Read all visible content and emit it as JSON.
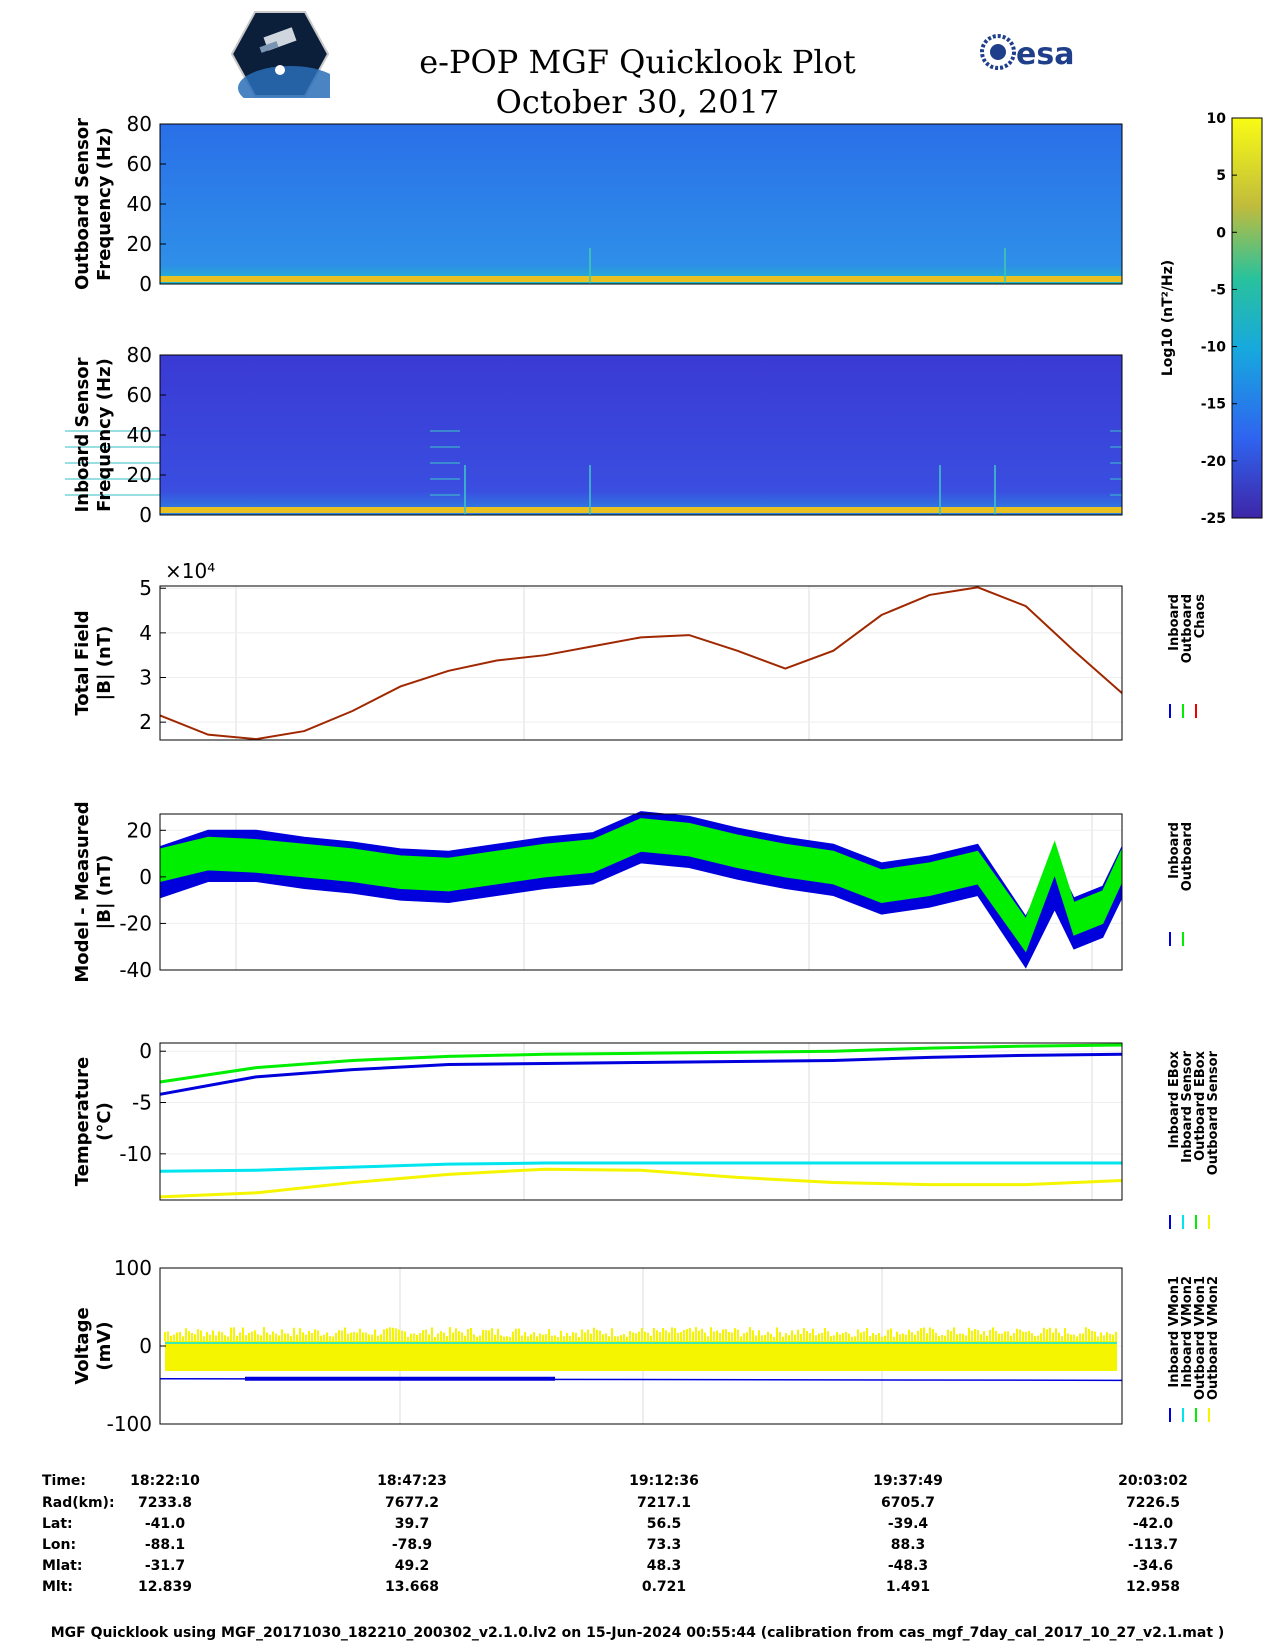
{
  "title": "e-POP MGF Quicklook Plot",
  "date": "October 30, 2017",
  "logos": {
    "left": "CASSIOPE mission logo",
    "right": "esa"
  },
  "colors": {
    "inboard": "#0000dd",
    "outboard": "#00ee00",
    "chaos": "#ee0000",
    "cyan": "#00e5ee",
    "yellow": "#f5f500",
    "total": "#a02800"
  },
  "colorbar": {
    "ticks": [
      "10",
      "5",
      "0",
      "-5",
      "-10",
      "-15",
      "-20",
      "-25"
    ],
    "label": "Log10 (nT²/Hz)",
    "range": [
      -25,
      10
    ]
  },
  "chart_data": [
    {
      "type": "heatmap",
      "ylabel": [
        "Outboard Sensor",
        "Frequency (Hz)"
      ],
      "yticks": [
        "80",
        "60",
        "40",
        "20",
        "0"
      ],
      "ylim": [
        0,
        80
      ]
    },
    {
      "type": "heatmap",
      "ylabel": [
        "Inboard Sensor",
        "Frequency (Hz)"
      ],
      "yticks": [
        "80",
        "60",
        "40",
        "20",
        "0"
      ],
      "ylim": [
        0,
        80
      ]
    },
    {
      "type": "line",
      "ylabel": [
        "Total Field",
        "|B| (nT)"
      ],
      "yticks": [
        "5",
        "4",
        "3",
        "2"
      ],
      "exponent": "×10⁴",
      "ylim": [
        1.6,
        5.05
      ],
      "legend": [
        "Inboard",
        "Outboard",
        "Chaos"
      ],
      "x_minutes": [
        0,
        5,
        10,
        15,
        20,
        25,
        30,
        35,
        40,
        45,
        50,
        55,
        60,
        65,
        70,
        75,
        80,
        85,
        90,
        95,
        100
      ],
      "series": [
        {
          "values": [
            2.15,
            1.72,
            1.62,
            1.8,
            2.25,
            2.8,
            3.15,
            3.38,
            3.5,
            3.7,
            3.9,
            3.95,
            3.6,
            3.2,
            3.6,
            4.4,
            4.85,
            5.02,
            4.6,
            3.6,
            2.65
          ]
        }
      ]
    },
    {
      "type": "line",
      "ylabel": [
        "Model - Measured",
        "|B| (nT)"
      ],
      "yticks": [
        "20",
        "0",
        "-20",
        "-40"
      ],
      "ylim": [
        -40,
        27
      ],
      "legend": [
        "Inboard",
        "Outboard"
      ],
      "x_minutes": [
        0,
        5,
        10,
        15,
        20,
        25,
        30,
        35,
        40,
        45,
        50,
        55,
        60,
        65,
        70,
        75,
        80,
        85,
        90,
        93,
        95,
        98,
        100
      ],
      "series": [
        {
          "name": "Inboard",
          "values": [
            2,
            9,
            9,
            6,
            4,
            1,
            0,
            3,
            6,
            8,
            17,
            15,
            10,
            6,
            3,
            -5,
            -2,
            3,
            -28,
            -3,
            -20,
            -15,
            2
          ]
        },
        {
          "name": "Outboard",
          "values": [
            5,
            10,
            9,
            7,
            5,
            2,
            1,
            4,
            7,
            9,
            18,
            16,
            11,
            7,
            4,
            -4,
            -1,
            4,
            -25,
            8,
            -18,
            -13,
            5
          ]
        }
      ]
    },
    {
      "type": "line",
      "ylabel": [
        "Temperature",
        "(°C)"
      ],
      "yticks": [
        "0",
        "-5",
        "-10"
      ],
      "ylim": [
        -14.5,
        0.8
      ],
      "legend": [
        "Inboard EBox",
        "Inboard Sensor",
        "Outboard EBox",
        "Outboard Sensor"
      ],
      "x_minutes": [
        0,
        10,
        20,
        30,
        40,
        50,
        60,
        70,
        80,
        90,
        100
      ],
      "series": [
        {
          "name": "Inboard EBox",
          "values": [
            -4.2,
            -2.5,
            -1.8,
            -1.3,
            -1.2,
            -1.1,
            -1.0,
            -0.9,
            -0.6,
            -0.4,
            -0.3
          ]
        },
        {
          "name": "Inboard Sensor",
          "values": [
            -3.0,
            -1.6,
            -0.9,
            -0.5,
            -0.3,
            -0.2,
            -0.1,
            0.0,
            0.3,
            0.5,
            0.6
          ]
        },
        {
          "name": "Outboard EBox",
          "values": [
            -11.7,
            -11.6,
            -11.3,
            -11.0,
            -10.9,
            -10.9,
            -10.9,
            -10.9,
            -10.9,
            -10.9,
            -10.9
          ]
        },
        {
          "name": "Outboard Sensor",
          "values": [
            -14.2,
            -13.8,
            -12.8,
            -12.0,
            -11.5,
            -11.6,
            -12.3,
            -12.8,
            -13.0,
            -13.0,
            -12.6
          ]
        }
      ]
    },
    {
      "type": "line",
      "ylabel": [
        "Voltage",
        "(mV)"
      ],
      "yticks": [
        "100",
        "0",
        "-100"
      ],
      "ylim": [
        -100,
        100
      ],
      "legend": [
        "Inboard VMon1",
        "Inboard VMon2",
        "Outboard VMon1",
        "Outboard VMon2"
      ],
      "x_minutes": [
        0,
        100
      ],
      "series": [
        {
          "name": "Inboard VMon1",
          "values": [
            -42,
            -44
          ]
        },
        {
          "name": "Inboard VMon2",
          "values": [
            -5,
            -5
          ]
        },
        {
          "name": "Outboard VMon1",
          "values": [
            -5,
            -5
          ]
        },
        {
          "name": "Outboard VMon2",
          "values": [
            -5,
            -5
          ]
        }
      ]
    }
  ],
  "table": {
    "labels": [
      "Time:",
      "Rad(km):",
      "Lat:",
      "Lon:",
      "Mlat:",
      "Mlt:"
    ],
    "columns": [
      [
        "18:22:10",
        "7233.8",
        "-41.0",
        "-88.1",
        "-31.7",
        "12.839"
      ],
      [
        "18:47:23",
        "7677.2",
        "39.7",
        "-78.9",
        "49.2",
        "13.668"
      ],
      [
        "19:12:36",
        "7217.1",
        "56.5",
        "73.3",
        "48.3",
        "0.721"
      ],
      [
        "19:37:49",
        "6705.7",
        "-39.4",
        "88.3",
        "-48.3",
        "1.491"
      ],
      [
        "20:03:02",
        "7226.5",
        "-42.0",
        "-113.7",
        "-34.6",
        "12.958"
      ]
    ]
  },
  "footer": "MGF Quicklook using MGF_20171030_182210_200302_v2.1.0.lv2 on 15-Jun-2024 00:55:44 (calibration from cas_mgf_7day_cal_2017_10_27_v2.1.mat )"
}
